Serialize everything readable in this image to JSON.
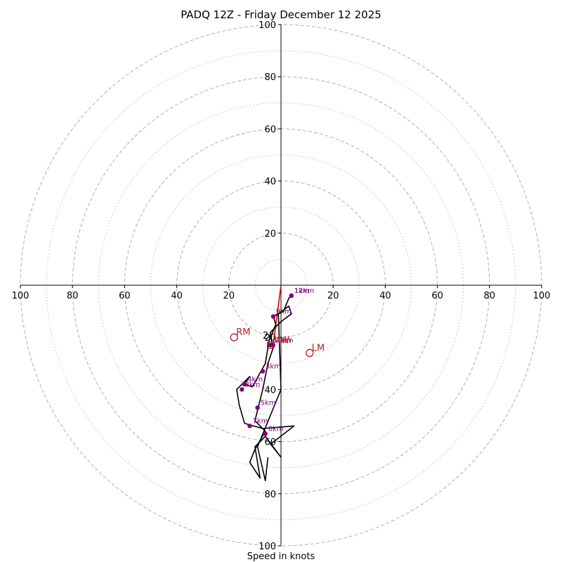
{
  "chart_data": {
    "type": "hodograph",
    "title": "PADQ 12Z - Friday December 12 2025",
    "xlabel": "Speed in knots",
    "axis_max": 100,
    "ring_major": [
      20,
      40,
      60,
      80,
      100
    ],
    "ring_minor": [
      10,
      30,
      50,
      70,
      90
    ],
    "tick_labels": {
      "x_left": [
        "100",
        "80",
        "60",
        "40",
        "20"
      ],
      "x_right": [
        "20",
        "40",
        "60",
        "80",
        "100"
      ],
      "y_top": [
        "20",
        "40",
        "60",
        "80",
        "100"
      ],
      "y_bottom": [
        "20",
        "40",
        "60",
        "80",
        "100"
      ]
    },
    "colors": {
      "trace": "#000000",
      "height_marker": "#800080",
      "motion": "#b22222",
      "shear_line": "#e00000",
      "grid": "#bbbbbb"
    },
    "trace": [
      [
        4,
        -4
      ],
      [
        3,
        -5
      ],
      [
        1,
        -10
      ],
      [
        -3,
        -12
      ],
      [
        -2,
        -15
      ],
      [
        -4,
        -20
      ],
      [
        -3,
        -24
      ],
      [
        -5,
        -30
      ],
      [
        -7,
        -40
      ],
      [
        -10,
        -52
      ],
      [
        -6,
        -56
      ],
      [
        -10,
        -63
      ],
      [
        -12,
        -68
      ],
      [
        -8,
        -74
      ],
      [
        -10,
        -62
      ],
      [
        -6,
        -58
      ],
      [
        0,
        -66
      ],
      [
        -4,
        -61
      ],
      [
        5,
        -54
      ],
      [
        -7,
        -55
      ],
      [
        -14,
        -53
      ],
      [
        -16,
        -46
      ],
      [
        -17,
        -40
      ],
      [
        -14,
        -37
      ],
      [
        -12,
        -35
      ],
      [
        -14,
        -38
      ],
      [
        -11,
        -39
      ],
      [
        -6,
        -30
      ],
      [
        -5,
        -24
      ],
      [
        -4,
        -18
      ],
      [
        0,
        -14
      ],
      [
        4,
        -11
      ],
      [
        3,
        -8
      ],
      [
        -1,
        -11
      ],
      [
        0,
        -40
      ],
      [
        -9,
        -62
      ],
      [
        -6,
        -75
      ],
      [
        -5,
        -66
      ]
    ],
    "height_markers": [
      {
        "label": "1km",
        "u": 4,
        "v": -4
      },
      {
        "label": "2km",
        "u": -3,
        "v": -23
      },
      {
        "label": "3km",
        "u": -7,
        "v": -33
      },
      {
        "label": "4km",
        "u": -14,
        "v": -38
      },
      {
        "label": "5km",
        "u": -9,
        "v": -47
      },
      {
        "label": "6km",
        "u": -6,
        "v": -57
      },
      {
        "label": "7km",
        "u": -12,
        "v": -54
      },
      {
        "label": "8km",
        "u": -15,
        "v": -40
      },
      {
        "label": "9km",
        "u": -3,
        "v": -12
      },
      {
        "label": "10km",
        "u": -4,
        "v": -23
      },
      {
        "label": "12km",
        "u": 4,
        "v": -4
      }
    ],
    "storm_motion": [
      {
        "label": "RM",
        "u": -18,
        "v": -20
      },
      {
        "label": "LM",
        "u": 11,
        "v": -26
      },
      {
        "label": "MW",
        "u": -4,
        "v": -23
      }
    ],
    "critical_angle_label": "2",
    "shear_line": [
      [
        0,
        0
      ],
      [
        -3,
        -23
      ]
    ]
  }
}
